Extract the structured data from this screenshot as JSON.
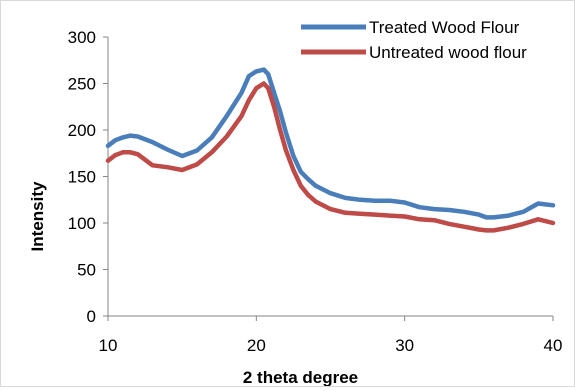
{
  "chart_data": {
    "type": "line",
    "title": "",
    "xlabel": "2 theta degree",
    "ylabel": "Intensity",
    "xlim": [
      10,
      40
    ],
    "ylim": [
      0,
      300
    ],
    "x_ticks": [
      10,
      20,
      30,
      40
    ],
    "y_ticks": [
      0,
      50,
      100,
      150,
      200,
      250,
      300
    ],
    "grid": false,
    "legend": "top-right",
    "series": [
      {
        "name": "Treated Wood Flour",
        "color": "#4A7EBB",
        "x": [
          10,
          10.5,
          11,
          11.5,
          12,
          13,
          14,
          15,
          16,
          17,
          18,
          19,
          19.5,
          20,
          20.5,
          20.8,
          21.2,
          21.6,
          22,
          22.5,
          23,
          23.5,
          24,
          25,
          26,
          27,
          28,
          29,
          30,
          31,
          32,
          33,
          34,
          35,
          35.5,
          36,
          37,
          38,
          39,
          40
        ],
        "y": [
          183,
          189,
          192,
          194,
          193,
          187,
          179,
          172,
          178,
          192,
          215,
          240,
          258,
          263,
          265,
          260,
          240,
          220,
          197,
          172,
          155,
          147,
          140,
          132,
          127,
          125,
          124,
          124,
          122,
          117,
          115,
          114,
          112,
          109,
          106,
          106,
          108,
          112,
          121,
          119
        ]
      },
      {
        "name": "Untreated wood flour",
        "color": "#BE4B48",
        "x": [
          10,
          10.5,
          11,
          11.5,
          12,
          13,
          14,
          15,
          16,
          17,
          18,
          19,
          19.5,
          20,
          20.5,
          20.8,
          21.2,
          21.6,
          22,
          22.5,
          23,
          23.5,
          24,
          25,
          26,
          27,
          28,
          29,
          30,
          31,
          32,
          33,
          34,
          35,
          35.5,
          36,
          37,
          38,
          39,
          40
        ],
        "y": [
          167,
          173,
          176,
          176,
          174,
          162,
          160,
          157,
          163,
          176,
          193,
          215,
          232,
          245,
          250,
          245,
          225,
          200,
          178,
          157,
          140,
          130,
          123,
          115,
          111,
          110,
          109,
          108,
          107,
          104,
          103,
          99,
          96,
          93,
          92,
          92,
          95,
          99,
          104,
          100
        ]
      }
    ]
  }
}
